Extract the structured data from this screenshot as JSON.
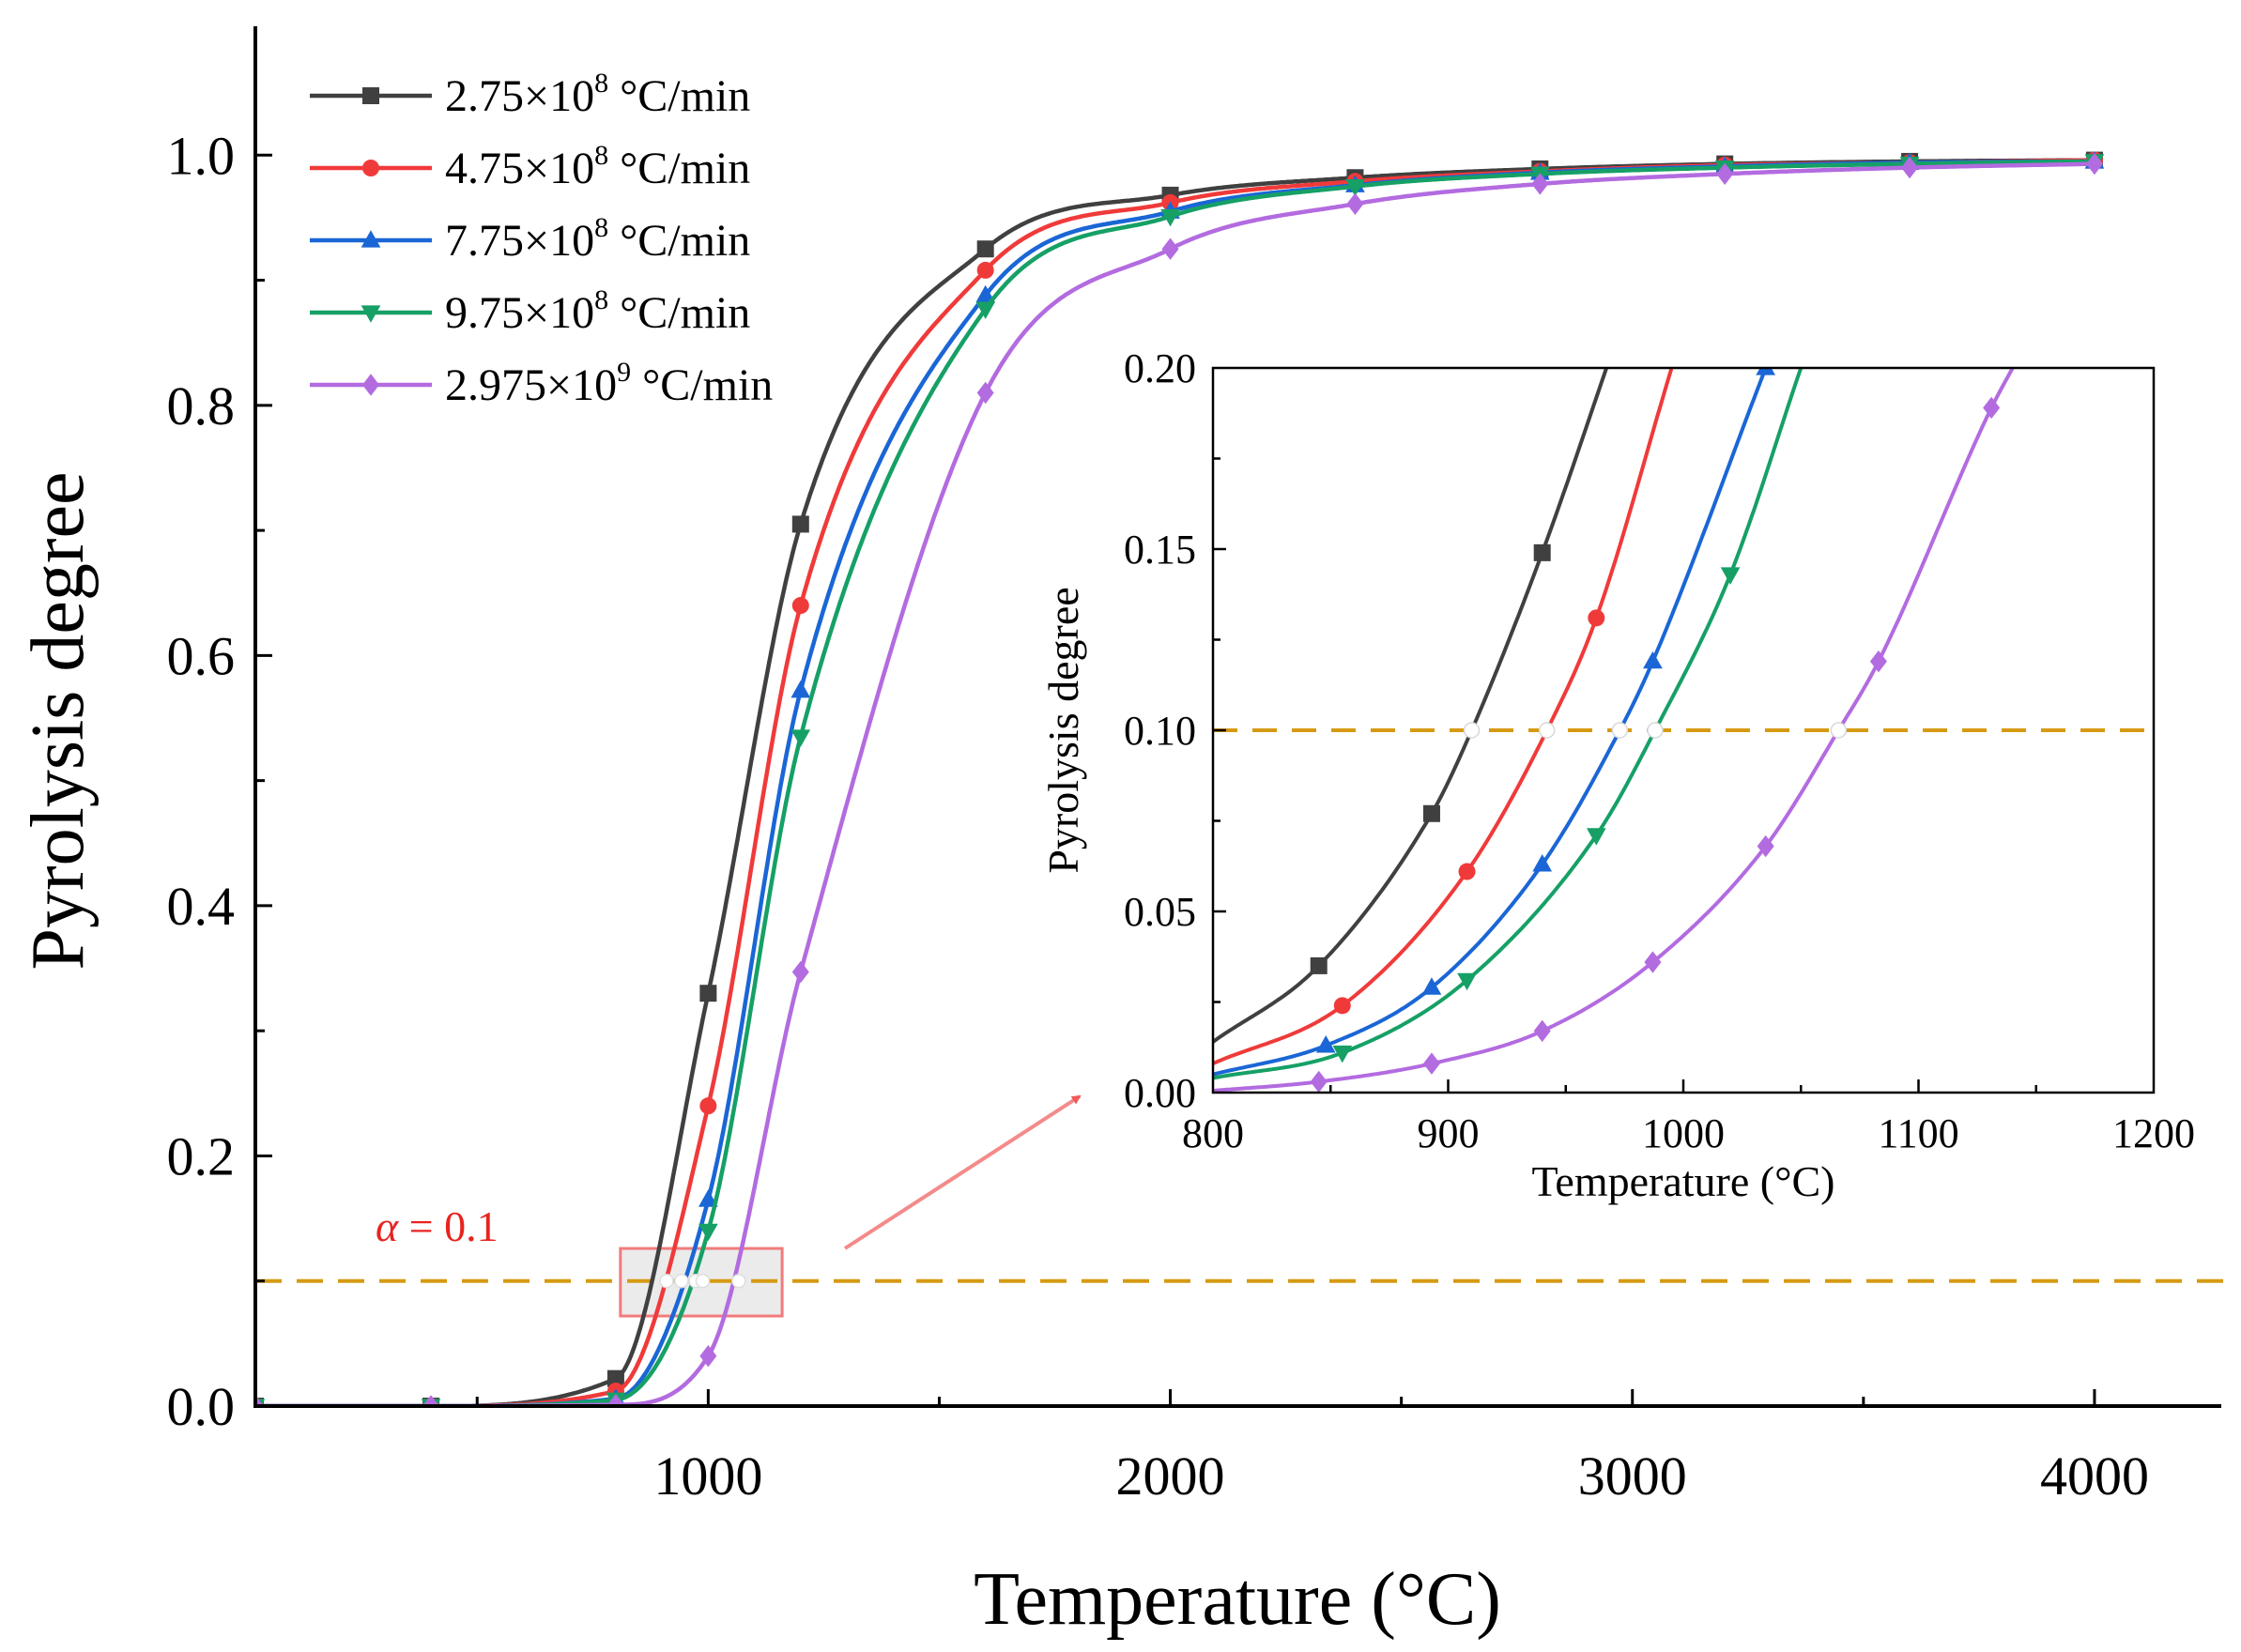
{
  "chart_data": [
    {
      "type": "line",
      "title": "",
      "xlabel": "Temperature (°C)",
      "ylabel": "Pyrolysis degree",
      "xlim": [
        20,
        4250
      ],
      "ylim": [
        0,
        1.1
      ],
      "x_ticks": [
        1000,
        2000,
        3000,
        4000
      ],
      "x_tick_labels": [
        "1000",
        "2000",
        "3000",
        "4000"
      ],
      "y_ticks": [
        0,
        0.2,
        0.4,
        0.6,
        0.8,
        1.0
      ],
      "y_tick_labels": [
        "0.0",
        "0.2",
        "0.4",
        "0.6",
        "0.8",
        "1.0"
      ],
      "legend_position": "top-left",
      "series": [
        {
          "name": "2.75×10",
          "exp": "8",
          "unit": " °C/min",
          "color": "#404040",
          "marker": "square",
          "x": [
            20,
            400,
            800,
            1000,
            1200,
            1600,
            2000,
            2400,
            2800,
            3200,
            3600,
            4000
          ],
          "y": [
            0,
            0,
            0.022,
            0.33,
            0.705,
            0.925,
            0.968,
            0.982,
            0.989,
            0.993,
            0.995,
            0.996
          ]
        },
        {
          "name": "4.75×10",
          "exp": "8",
          "unit": " °C/min",
          "color": "#f03a3a",
          "marker": "circle",
          "x": [
            20,
            400,
            800,
            1000,
            1200,
            1600,
            2000,
            2400,
            2800,
            3200,
            3600,
            4000
          ],
          "y": [
            0,
            0,
            0.012,
            0.24,
            0.64,
            0.908,
            0.962,
            0.979,
            0.987,
            0.992,
            0.994,
            0.996
          ]
        },
        {
          "name": "7.75×10",
          "exp": "8",
          "unit": " °C/min",
          "color": "#1a66d6",
          "marker": "triangle-up",
          "x": [
            20,
            400,
            800,
            1000,
            1200,
            1600,
            2000,
            2400,
            2800,
            3200,
            3600,
            4000
          ],
          "y": [
            0,
            0,
            0.006,
            0.165,
            0.572,
            0.888,
            0.955,
            0.976,
            0.986,
            0.991,
            0.994,
            0.995
          ]
        },
        {
          "name": "9.75×10",
          "exp": "8",
          "unit": " °C/min",
          "color": "#16a066",
          "marker": "triangle-down",
          "x": [
            20,
            400,
            800,
            1000,
            1200,
            1600,
            2000,
            2400,
            2800,
            3200,
            3600,
            4000
          ],
          "y": [
            0,
            0,
            0.005,
            0.14,
            0.535,
            0.877,
            0.951,
            0.975,
            0.985,
            0.99,
            0.993,
            0.995
          ]
        },
        {
          "name": "2.975×10",
          "exp": "9",
          "unit": " °C/min",
          "color": "#b36be0",
          "marker": "diamond",
          "x": [
            20,
            400,
            800,
            1000,
            1200,
            1600,
            2000,
            2400,
            2800,
            3200,
            3600,
            4000
          ],
          "y": [
            0,
            0,
            0.001,
            0.04,
            0.347,
            0.81,
            0.925,
            0.961,
            0.977,
            0.985,
            0.99,
            0.993
          ]
        }
      ],
      "reference_line": {
        "y": 0.1,
        "color": "#d69a12",
        "label": "α = 0.1",
        "label_greek": "α",
        "label_rest": " = 0.1",
        "label_color": "#e8231f"
      },
      "intersections_x": [
        910,
        942,
        973,
        988,
        1066
      ],
      "zoom_box": {
        "x_range": [
          810,
          1160
        ],
        "y_range": [
          0.072,
          0.126
        ],
        "fill": "#e8e8e8",
        "stroke": "#f27b7b"
      }
    },
    {
      "type": "line",
      "title": "",
      "xlabel": "Temperature (°C)",
      "ylabel": "Pyrolysis degree",
      "xlim": [
        800,
        1200
      ],
      "ylim": [
        0,
        0.2
      ],
      "x_ticks": [
        800,
        900,
        1000,
        1100,
        1200
      ],
      "x_tick_labels": [
        "800",
        "900",
        "1000",
        "1100",
        "1200"
      ],
      "y_ticks": [
        0,
        0.05,
        0.1,
        0.15,
        0.2
      ],
      "y_tick_labels": [
        "0.00",
        "0.05",
        "0.10",
        "0.15",
        "0.20"
      ],
      "reference_line_y": 0.1,
      "intersections_x": [
        910,
        942,
        973,
        988,
        1066
      ],
      "series": [
        {
          "name": "2.75×10^8 °C/min",
          "color": "#404040",
          "marker": "square",
          "x": [
            800,
            845,
            893,
            910,
            940,
            970
          ],
          "y": [
            0.014,
            0.035,
            0.077,
            0.1,
            0.149,
            0.205
          ],
          "marker_x": [
            845,
            893,
            940
          ]
        },
        {
          "name": "4.75×10^8 °C/min",
          "color": "#f03a3a",
          "marker": "circle",
          "x": [
            800,
            855,
            908,
            942,
            963,
            995
          ],
          "y": [
            0.008,
            0.024,
            0.061,
            0.1,
            0.131,
            0.2
          ],
          "marker_x": [
            855,
            908,
            963
          ]
        },
        {
          "name": "7.75×10^8 °C/min",
          "color": "#1a66d6",
          "marker": "triangle-up",
          "x": [
            800,
            848,
            893,
            940,
            973,
            987,
            1035
          ],
          "y": [
            0.005,
            0.013,
            0.029,
            0.063,
            0.1,
            0.119,
            0.2
          ],
          "marker_x": [
            848,
            893,
            940,
            987,
            1035
          ]
        },
        {
          "name": "9.75×10^8 °C/min",
          "color": "#16a066",
          "marker": "triangle-down",
          "x": [
            800,
            855,
            908,
            963,
            988,
            1020,
            1050
          ],
          "y": [
            0.004,
            0.011,
            0.031,
            0.071,
            0.1,
            0.143,
            0.2
          ],
          "marker_x": [
            855,
            908,
            963,
            1020
          ]
        },
        {
          "name": "2.975×10^9 °C/min",
          "color": "#b36be0",
          "marker": "diamond",
          "x": [
            800,
            845,
            893,
            940,
            987,
            1035,
            1066,
            1083,
            1131,
            1140
          ],
          "y": [
            0.0005,
            0.003,
            0.008,
            0.017,
            0.036,
            0.068,
            0.1,
            0.119,
            0.189,
            0.2
          ],
          "marker_x": [
            845,
            893,
            940,
            987,
            1035,
            1083,
            1131
          ]
        }
      ]
    }
  ]
}
